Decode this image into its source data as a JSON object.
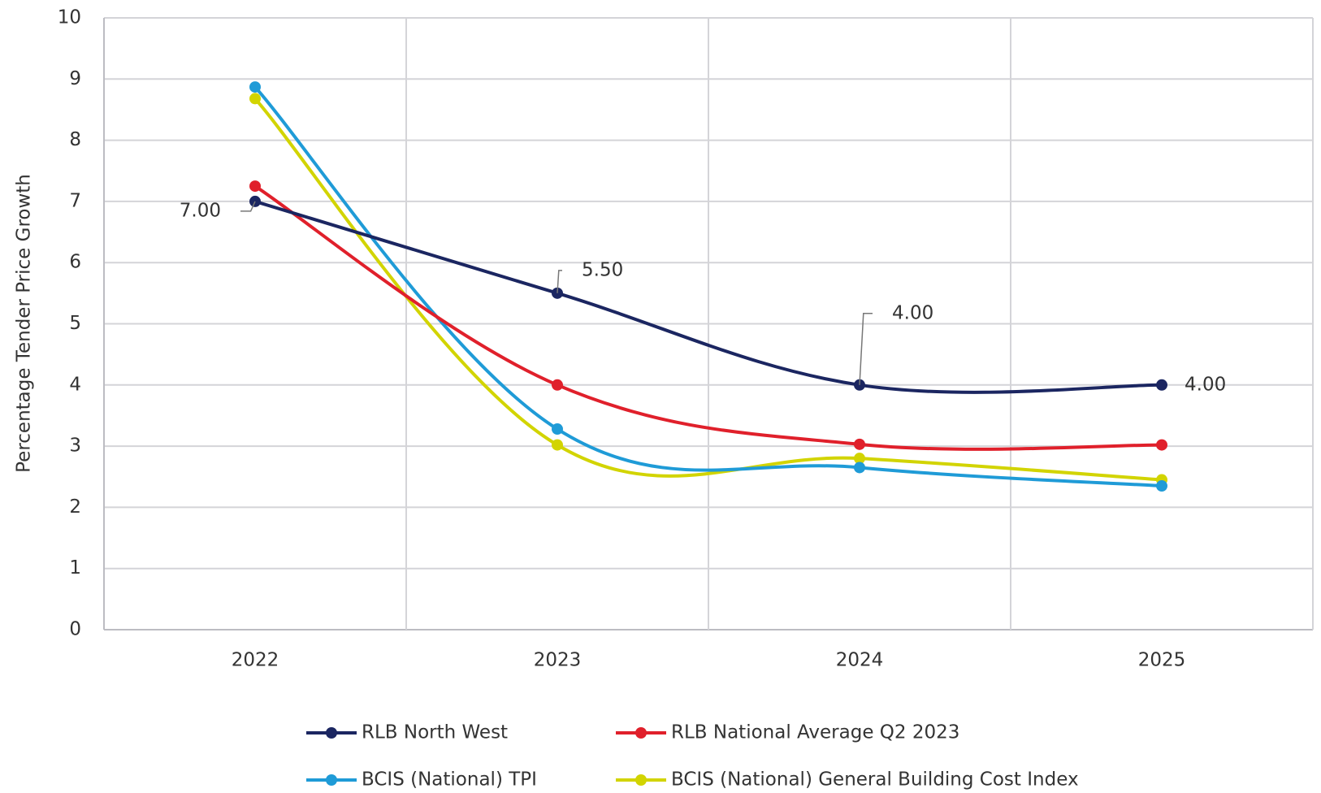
{
  "chart_data": {
    "type": "line",
    "y_label": "Percentage Tender Price Growth",
    "categories": [
      "2022",
      "2023",
      "2024",
      "2025"
    ],
    "series": [
      {
        "name": "RLB North West",
        "color": "#1b2661",
        "values": [
          7,
          5.5,
          4,
          4
        ],
        "value_labels": [
          "7.00",
          "5.50",
          "4.00",
          "4.00"
        ]
      },
      {
        "name": "RLB National Average Q2 2023",
        "color": "#e0202b",
        "values": [
          7.25,
          4.0,
          3.03,
          3.02
        ]
      },
      {
        "name": "BCIS (National) TPI",
        "color": "#1f9bd7",
        "values": [
          8.87,
          3.28,
          2.65,
          2.35
        ]
      },
      {
        "name": "BCIS (National) General Building Cost Index",
        "color": "#d2d400",
        "values": [
          8.68,
          3.02,
          2.8,
          2.45
        ]
      }
    ],
    "ylim": [
      0,
      10
    ],
    "yticks": [
      0,
      1,
      2,
      3,
      4,
      5,
      6,
      7,
      8,
      9,
      10
    ],
    "grid": true
  }
}
